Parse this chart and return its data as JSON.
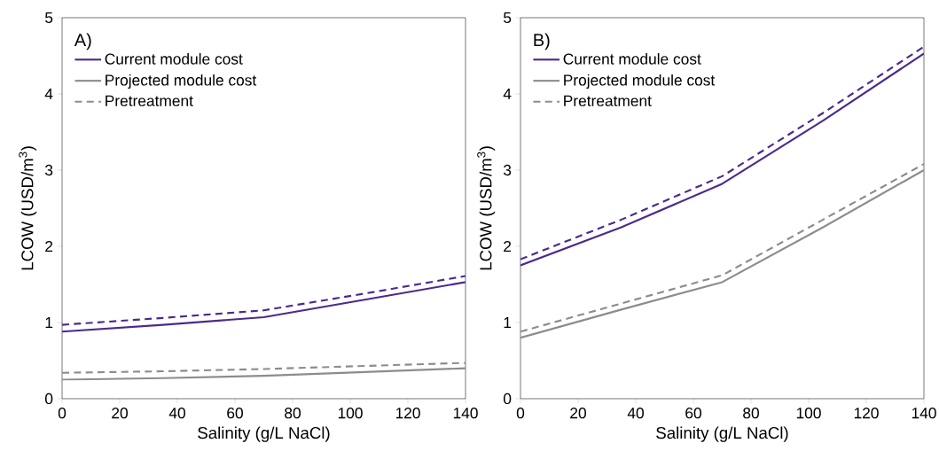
{
  "chart_data": [
    {
      "type": "line",
      "annotations": [
        "A)"
      ],
      "xlabel": "Salinity (g/L NaCl)",
      "ylabel": "LCOW (USD/m$^{3}$)",
      "x": [
        0,
        35,
        70,
        105,
        140
      ],
      "xlim": [
        0,
        140
      ],
      "ylim": [
        0,
        5
      ],
      "xticks": [
        0,
        20,
        40,
        60,
        80,
        100,
        120,
        140
      ],
      "yticks": [
        0,
        1,
        2,
        3,
        4,
        5
      ],
      "legend": "top left",
      "grid": false,
      "series": [
        {
          "name": "Current module cost",
          "color": "#4b2a8c",
          "line_style": "solid",
          "values": [
            0.88,
            0.97,
            1.07,
            1.3,
            1.53
          ]
        },
        {
          "name": "Projected module cost",
          "color": "#8c8c8c",
          "line_style": "solid",
          "values": [
            0.25,
            0.27,
            0.3,
            0.35,
            0.4
          ]
        },
        {
          "name": "Pretreatment",
          "color": "#8c8c8c",
          "line_style": "dashed",
          "values": [
            0.34,
            0.36,
            0.39,
            0.43,
            0.47
          ]
        },
        {
          "color": "#4b2a8c",
          "line_style": "dashed",
          "values": [
            0.97,
            1.06,
            1.16,
            1.38,
            1.61
          ]
        }
      ]
    },
    {
      "type": "line",
      "annotations": [
        "B)"
      ],
      "xlabel": "Salinity (g/L NaCl)",
      "ylabel": "LCOW (USD/m$^{3}$)",
      "x": [
        0,
        35,
        70,
        105,
        140
      ],
      "xlim": [
        0,
        140
      ],
      "ylim": [
        0,
        5
      ],
      "xticks": [
        0,
        20,
        40,
        60,
        80,
        100,
        120,
        140
      ],
      "yticks": [
        0,
        1,
        2,
        3,
        4,
        5
      ],
      "legend": "top left",
      "grid": false,
      "series": [
        {
          "name": "Current module cost",
          "color": "#4b2a8c",
          "line_style": "solid",
          "values": [
            1.75,
            2.25,
            2.82,
            3.65,
            4.53
          ]
        },
        {
          "name": "Projected module cost",
          "color": "#8c8c8c",
          "line_style": "solid",
          "values": [
            0.8,
            1.17,
            1.53,
            2.25,
            3.0
          ]
        },
        {
          "name": "Pretreatment",
          "color": "#8c8c8c",
          "line_style": "dashed",
          "values": [
            0.88,
            1.25,
            1.62,
            2.35,
            3.08
          ]
        },
        {
          "color": "#4b2a8c",
          "line_style": "dashed",
          "values": [
            1.83,
            2.35,
            2.92,
            3.75,
            4.62
          ]
        }
      ]
    }
  ]
}
